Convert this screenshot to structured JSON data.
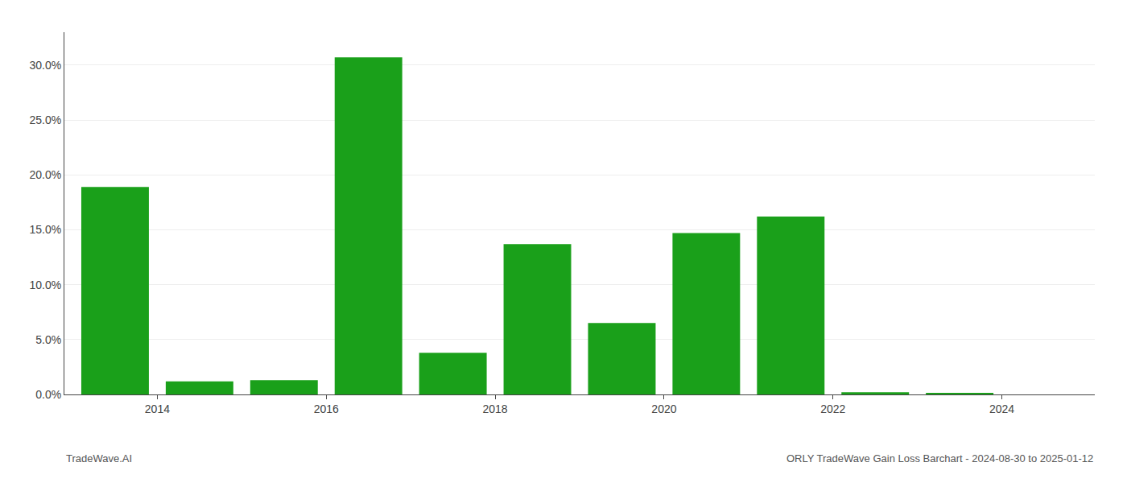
{
  "chart_data": {
    "type": "bar",
    "x": [
      2013,
      2014,
      2015,
      2016,
      2017,
      2018,
      2019,
      2020,
      2021,
      2022,
      2023,
      2024
    ],
    "values": [
      0.189,
      0.012,
      0.013,
      0.307,
      0.038,
      0.137,
      0.065,
      0.147,
      0.162,
      0.002,
      0.001,
      0.0
    ],
    "color": "#1aa01a",
    "xlim": [
      2012.4,
      2024.6
    ],
    "xticks": [
      {
        "value": 2013.5,
        "label": "2014"
      },
      {
        "value": 2015.5,
        "label": "2016"
      },
      {
        "value": 2017.5,
        "label": "2018"
      },
      {
        "value": 2019.5,
        "label": "2020"
      },
      {
        "value": 2021.5,
        "label": "2022"
      },
      {
        "value": 2023.5,
        "label": "2024"
      }
    ],
    "ylim": [
      0,
      0.33
    ],
    "yticks": [
      {
        "value": 0.0,
        "label": "0.0%"
      },
      {
        "value": 0.05,
        "label": "5.0%"
      },
      {
        "value": 0.1,
        "label": "10.0%"
      },
      {
        "value": 0.15,
        "label": "15.0%"
      },
      {
        "value": 0.2,
        "label": "20.0%"
      },
      {
        "value": 0.25,
        "label": "25.0%"
      },
      {
        "value": 0.3,
        "label": "30.0%"
      }
    ],
    "grid": true,
    "annotations": [
      "TradeWave.AI",
      "ORLY TradeWave Gain Loss Barchart - 2024-08-30 to 2025-01-12"
    ]
  }
}
